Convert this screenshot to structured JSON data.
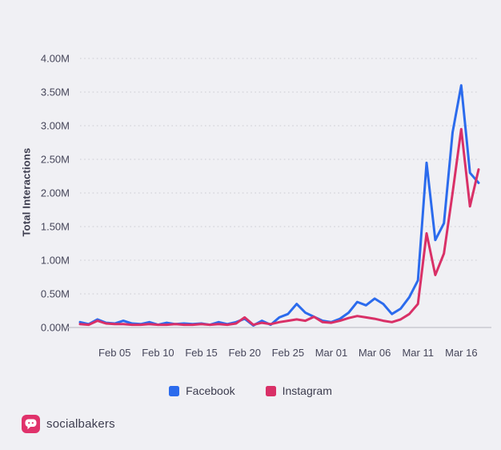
{
  "brand": {
    "name": "socialbakers",
    "logo_color": "#e0326b"
  },
  "colors": {
    "background": "#f0f0f4",
    "facebook": "#2b6bed",
    "instagram": "#d93067",
    "gridline": "#d7d7dd",
    "axis_line": "#c9c9d2"
  },
  "legend": {
    "items": [
      "Facebook",
      "Instagram"
    ]
  },
  "chart_data": {
    "type": "line",
    "title": "",
    "xlabel": "",
    "ylabel": "Total Interactions",
    "ylim": [
      0,
      4
    ],
    "unit": "M",
    "grid": "dotted-horizontal",
    "legend_position": "bottom",
    "ytick_values": [
      0,
      0.5,
      1,
      1.5,
      2,
      2.5,
      3,
      3.5,
      4
    ],
    "ytick_labels": [
      "0.00M",
      "0.50M",
      "1.00M",
      "1.50M",
      "2.00M",
      "2.50M",
      "3.00M",
      "3.50M",
      "4.00M"
    ],
    "x": [
      "Feb 01",
      "Feb 02",
      "Feb 03",
      "Feb 04",
      "Feb 05",
      "Feb 06",
      "Feb 07",
      "Feb 08",
      "Feb 09",
      "Feb 10",
      "Feb 11",
      "Feb 12",
      "Feb 13",
      "Feb 14",
      "Feb 15",
      "Feb 16",
      "Feb 17",
      "Feb 18",
      "Feb 19",
      "Feb 20",
      "Feb 21",
      "Feb 22",
      "Feb 23",
      "Feb 24",
      "Feb 25",
      "Feb 26",
      "Feb 27",
      "Feb 28",
      "Feb 29",
      "Mar 01",
      "Mar 02",
      "Mar 03",
      "Mar 04",
      "Mar 05",
      "Mar 06",
      "Mar 07",
      "Mar 08",
      "Mar 09",
      "Mar 10",
      "Mar 11",
      "Mar 12",
      "Mar 13",
      "Mar 14",
      "Mar 15",
      "Mar 16",
      "Mar 17",
      "Mar 18"
    ],
    "xticks": [
      "Feb 05",
      "Feb 10",
      "Feb 15",
      "Feb 20",
      "Feb 25",
      "Mar 01",
      "Mar 06",
      "Mar 11",
      "Mar 16"
    ],
    "series": [
      {
        "name": "Facebook",
        "color": "#2b6bed",
        "values": [
          0.08,
          0.05,
          0.12,
          0.07,
          0.06,
          0.1,
          0.06,
          0.05,
          0.08,
          0.04,
          0.07,
          0.05,
          0.06,
          0.05,
          0.06,
          0.04,
          0.08,
          0.05,
          0.08,
          0.13,
          0.03,
          0.1,
          0.04,
          0.15,
          0.2,
          0.35,
          0.22,
          0.16,
          0.1,
          0.08,
          0.13,
          0.22,
          0.38,
          0.33,
          0.43,
          0.35,
          0.2,
          0.28,
          0.45,
          0.7,
          2.45,
          1.3,
          1.55,
          2.9,
          3.6,
          2.3,
          2.15
        ]
      },
      {
        "name": "Instagram",
        "color": "#d93067",
        "values": [
          0.05,
          0.04,
          0.1,
          0.06,
          0.05,
          0.05,
          0.04,
          0.04,
          0.05,
          0.04,
          0.04,
          0.05,
          0.04,
          0.04,
          0.05,
          0.04,
          0.05,
          0.04,
          0.06,
          0.15,
          0.04,
          0.07,
          0.05,
          0.08,
          0.1,
          0.12,
          0.1,
          0.16,
          0.08,
          0.07,
          0.1,
          0.14,
          0.17,
          0.15,
          0.13,
          0.1,
          0.08,
          0.12,
          0.2,
          0.35,
          1.4,
          0.78,
          1.1,
          2.0,
          2.95,
          1.8,
          2.35
        ]
      }
    ]
  }
}
